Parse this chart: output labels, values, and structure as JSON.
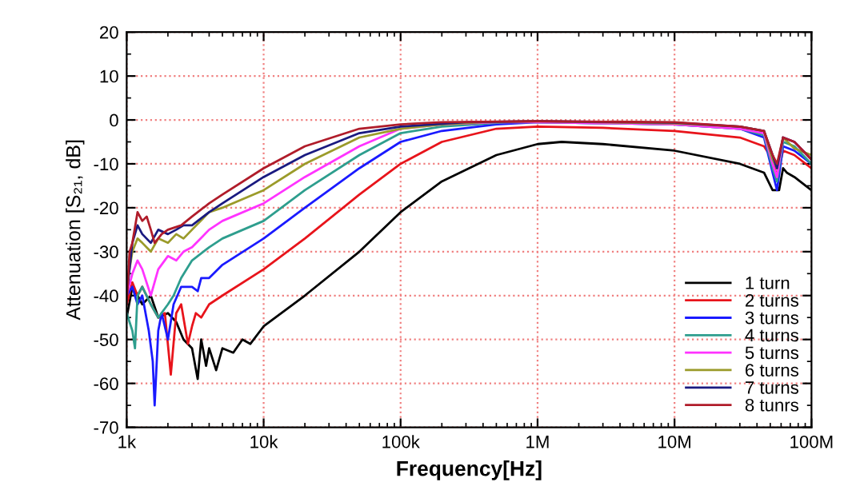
{
  "chart_data": {
    "type": "line",
    "xlabel": "Frequency[Hz]",
    "ylabel": "Attenuation [S₂₁, dB]",
    "log": "x",
    "xlim": [
      1000,
      100000000
    ],
    "ylim": [
      -70,
      20
    ],
    "xticks": [
      {
        "value": 1000,
        "label": "1k"
      },
      {
        "value": 10000,
        "label": "10k"
      },
      {
        "value": 100000,
        "label": "100k"
      },
      {
        "value": 1000000,
        "label": "1M"
      },
      {
        "value": 10000000,
        "label": "10M"
      },
      {
        "value": 100000000,
        "label": "100M"
      }
    ],
    "yticks": [
      -70,
      -60,
      -50,
      -40,
      -30,
      -20,
      -10,
      0,
      10,
      20
    ],
    "grid": true,
    "legend": "bottom right",
    "marker": "none",
    "line_style": "solid",
    "series": [
      {
        "name": "1 turn",
        "color": "#000000",
        "x": [
          1000,
          1100,
          1200,
          1300,
          1500,
          1700,
          2000,
          2300,
          2600,
          3000,
          3300,
          3500,
          3800,
          4000,
          4500,
          5000,
          6000,
          7000,
          8000,
          10000,
          20000,
          50000,
          100000,
          200000,
          500000,
          1000000,
          1500000,
          3000000,
          10000000,
          30000000,
          45000000,
          52000000,
          58000000,
          62000000,
          66000000,
          75000000,
          100000000
        ],
        "values": [
          -45,
          -38,
          -40,
          -42,
          -40,
          -45,
          -44,
          -46,
          -50,
          -52,
          -59,
          -50,
          -56,
          -52,
          -57,
          -52,
          -53,
          -50,
          -51,
          -47,
          -40,
          -30,
          -21,
          -14,
          -8,
          -5.5,
          -5,
          -5.5,
          -7,
          -10,
          -12,
          -16,
          -16,
          -11,
          -12,
          -13,
          -16
        ]
      },
      {
        "name": "2 turns",
        "color": "#e8141b",
        "x": [
          1000,
          1100,
          1200,
          1300,
          1500,
          1700,
          1900,
          2100,
          2300,
          2500,
          2800,
          3000,
          3200,
          3500,
          4000,
          5000,
          10000,
          20000,
          50000,
          100000,
          200000,
          500000,
          1000000,
          3000000,
          10000000,
          30000000,
          45000000,
          52000000,
          56000000,
          62000000,
          75000000,
          100000000
        ],
        "values": [
          -42,
          -37,
          -40,
          -38,
          -42,
          -45,
          -44,
          -58,
          -44,
          -42,
          -51,
          -47,
          -44,
          -45,
          -42,
          -40,
          -34,
          -27,
          -17,
          -10,
          -5,
          -2,
          -1.5,
          -1.8,
          -2.5,
          -4,
          -6,
          -9,
          -13,
          -7,
          -8,
          -11
        ]
      },
      {
        "name": "3 turns",
        "color": "#1a1aff",
        "x": [
          1000,
          1100,
          1200,
          1300,
          1450,
          1550,
          1600,
          1700,
          1800,
          2000,
          2200,
          2500,
          3000,
          3300,
          3500,
          4000,
          5000,
          10000,
          20000,
          50000,
          100000,
          200000,
          500000,
          1000000,
          10000000,
          30000000,
          45000000,
          52000000,
          56000000,
          62000000,
          75000000,
          100000000
        ],
        "values": [
          -40,
          -38,
          -42,
          -40,
          -48,
          -55,
          -65,
          -48,
          -44,
          -50,
          -42,
          -38,
          -38,
          -39,
          -36,
          -36,
          -33,
          -27,
          -20,
          -11,
          -5,
          -2.5,
          -1,
          -0.5,
          -1,
          -2,
          -4,
          -12,
          -16,
          -6,
          -7,
          -10
        ]
      },
      {
        "name": "4 turns",
        "color": "#2e9e8e",
        "x": [
          1000,
          1100,
          1150,
          1200,
          1300,
          1500,
          1700,
          2000,
          2200,
          2500,
          3000,
          4000,
          5000,
          10000,
          20000,
          50000,
          100000,
          200000,
          600000,
          1000000,
          10000000,
          30000000,
          45000000,
          52000000,
          56000000,
          62000000,
          75000000,
          100000000
        ],
        "values": [
          -44,
          -48,
          -52,
          -40,
          -38,
          -42,
          -45,
          -42,
          -40,
          -36,
          -32,
          -29,
          -27,
          -23,
          -16,
          -8,
          -3,
          -1.5,
          -0.5,
          -0.5,
          -1,
          -2,
          -3.5,
          -11,
          -14,
          -5,
          -6,
          -10
        ]
      },
      {
        "name": "5 turns",
        "color": "#ff33ff",
        "x": [
          1000,
          1100,
          1200,
          1300,
          1500,
          1700,
          2000,
          2300,
          2600,
          3000,
          4000,
          5000,
          10000,
          20000,
          50000,
          100000,
          200000,
          500000,
          1000000,
          10000000,
          30000000,
          45000000,
          52000000,
          56000000,
          62000000,
          75000000,
          100000000
        ],
        "values": [
          -40,
          -35,
          -32,
          -34,
          -40,
          -34,
          -31,
          -32,
          -30,
          -29,
          -25,
          -23,
          -19,
          -13,
          -6,
          -2,
          -1,
          -0.5,
          -0.5,
          -1,
          -2,
          -3,
          -10,
          -13,
          -4,
          -5,
          -9
        ]
      },
      {
        "name": "6 turns",
        "color": "#9b9b2a",
        "x": [
          1000,
          1100,
          1200,
          1300,
          1500,
          1700,
          2000,
          2300,
          2600,
          3000,
          4000,
          5000,
          10000,
          20000,
          50000,
          100000,
          200000,
          400000,
          1000000,
          10000000,
          30000000,
          45000000,
          52000000,
          56000000,
          62000000,
          75000000,
          100000000
        ],
        "values": [
          -38,
          -30,
          -27,
          -28,
          -30,
          -27,
          -28,
          -26,
          -27,
          -25,
          -21,
          -20,
          -16,
          -10,
          -4,
          -2,
          -1,
          -0.5,
          -0.3,
          -0.8,
          -1.5,
          -2.5,
          -9,
          -11,
          -4,
          -6.5,
          -8
        ]
      },
      {
        "name": "7 turns",
        "color": "#1a1a80",
        "x": [
          1000,
          1100,
          1200,
          1300,
          1500,
          1700,
          2000,
          2300,
          2600,
          3000,
          4000,
          5000,
          10000,
          20000,
          50000,
          100000,
          300000,
          1000000,
          10000000,
          30000000,
          45000000,
          52000000,
          56000000,
          62000000,
          75000000,
          100000000
        ],
        "values": [
          -40,
          -28,
          -24,
          -26,
          -28,
          -25,
          -26,
          -25,
          -24,
          -24,
          -21,
          -19,
          -13,
          -8,
          -3,
          -1.5,
          -0.5,
          -0.3,
          -0.6,
          -1.5,
          -2.5,
          -8,
          -11,
          -4,
          -5,
          -9
        ]
      },
      {
        "name": "8 tunrs",
        "color": "#b01c2a",
        "x": [
          1000,
          1050,
          1100,
          1200,
          1300,
          1400,
          1500,
          1600,
          1800,
          2000,
          2500,
          3000,
          4000,
          5000,
          10000,
          20000,
          50000,
          100000,
          200000,
          1000000,
          10000000,
          30000000,
          45000000,
          52000000,
          56000000,
          62000000,
          75000000,
          100000000
        ],
        "values": [
          -42,
          -30,
          -28,
          -21,
          -23,
          -22,
          -25,
          -28,
          -26,
          -25,
          -24,
          -22,
          -19,
          -17,
          -11,
          -6,
          -2,
          -1,
          -0.5,
          -0.3,
          -0.5,
          -1.5,
          -2.5,
          -8,
          -10,
          -4,
          -5,
          -9
        ]
      }
    ]
  }
}
